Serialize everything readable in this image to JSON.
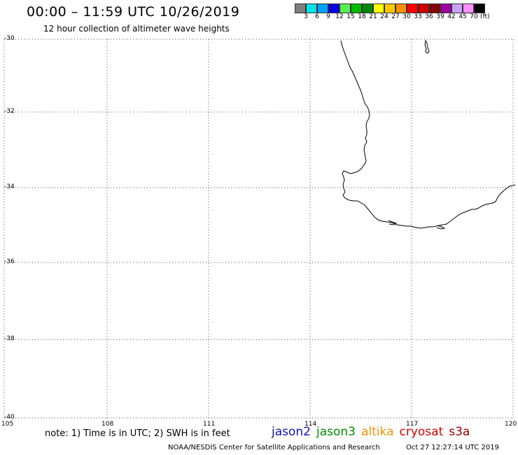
{
  "header": {
    "title": "00:00 – 11:59 UTC 10/26/2019",
    "subtitle": "12 hour collection of altimeter wave heights"
  },
  "legend": {
    "colors": [
      "#7f7f7f",
      "#00e5e5",
      "#00a0ff",
      "#0000e5",
      "#55ee55",
      "#00bb00",
      "#008800",
      "#ffff00",
      "#ffc800",
      "#ff9000",
      "#ff0000",
      "#cc0000",
      "#880000",
      "#a000a0",
      "#c8a0ff",
      "#ff90ff",
      "#000000"
    ],
    "labels": [
      "3",
      "6",
      "9",
      "12",
      "15",
      "18",
      "21",
      "24",
      "27",
      "30",
      "33",
      "36",
      "39",
      "42",
      "45",
      "70"
    ],
    "unit": "(ft)"
  },
  "map": {
    "lat_labels": [
      "-30",
      "-32",
      "-34",
      "-36",
      "-38",
      "-40"
    ],
    "lon_labels": [
      "105",
      "108",
      "111",
      "114",
      "117",
      "120"
    ],
    "coast_color": "#000000",
    "grid_color": "#555555"
  },
  "footer": {
    "note": "note: 1) Time is in UTC; 2) SWH is in feet",
    "missions": [
      {
        "label": "jason2",
        "color": "#1010c0"
      },
      {
        "label": "jason3",
        "color": "#009000"
      },
      {
        "label": "altika",
        "color": "#ff9000"
      },
      {
        "label": "cryosat",
        "color": "#e00000"
      },
      {
        "label": "s3a",
        "color": "#a00000"
      }
    ],
    "credit": "NOAA/NESDIS Center for Satellite Applications and Research",
    "timestamp": "Oct 27 12:27:14 UTC 2019"
  }
}
